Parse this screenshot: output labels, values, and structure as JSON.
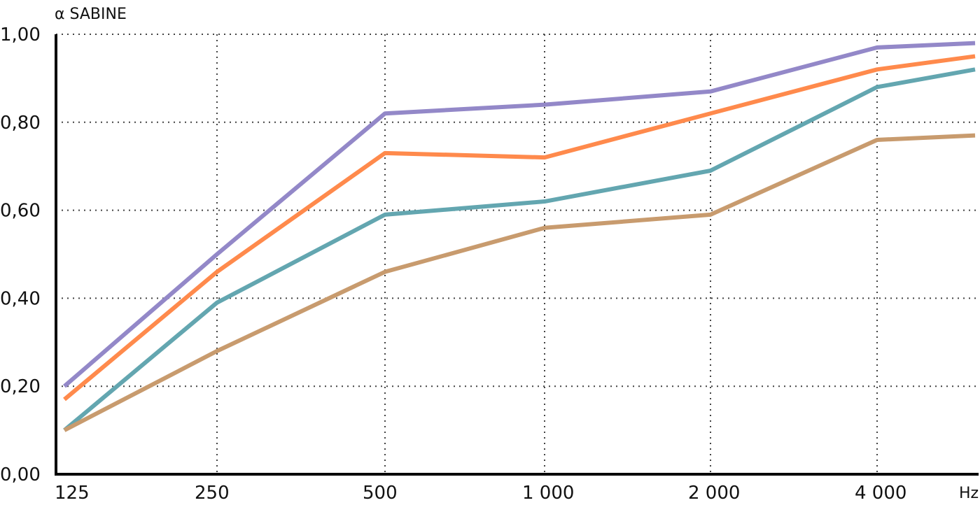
{
  "chart_data": {
    "type": "line",
    "ylabel": "α SABINE",
    "xunit": "Hz",
    "x": [
      125,
      250,
      500,
      1000,
      2000,
      4000,
      5000
    ],
    "x_tick_labels": [
      "125",
      "250",
      "500",
      "1 000",
      "2 000",
      "4 000"
    ],
    "y_tick_labels": [
      "0,00",
      "0,20",
      "0,40",
      "0,60",
      "0,80",
      "1,00"
    ],
    "y_ticks": [
      0,
      0.2,
      0.4,
      0.6,
      0.8,
      1.0
    ],
    "ylim": [
      0,
      1.0
    ],
    "grid": true,
    "series": [
      {
        "color": "#9388c8",
        "values": [
          0.2,
          0.5,
          0.82,
          0.84,
          0.87,
          0.97,
          0.98
        ]
      },
      {
        "color": "#ff8a4c",
        "values": [
          0.17,
          0.46,
          0.73,
          0.72,
          0.82,
          0.92,
          0.95
        ]
      },
      {
        "color": "#63a6b0",
        "values": [
          0.1,
          0.39,
          0.59,
          0.62,
          0.69,
          0.88,
          0.92
        ]
      },
      {
        "color": "#c89b6e",
        "values": [
          0.1,
          0.28,
          0.46,
          0.56,
          0.59,
          0.76,
          0.77
        ]
      }
    ]
  }
}
